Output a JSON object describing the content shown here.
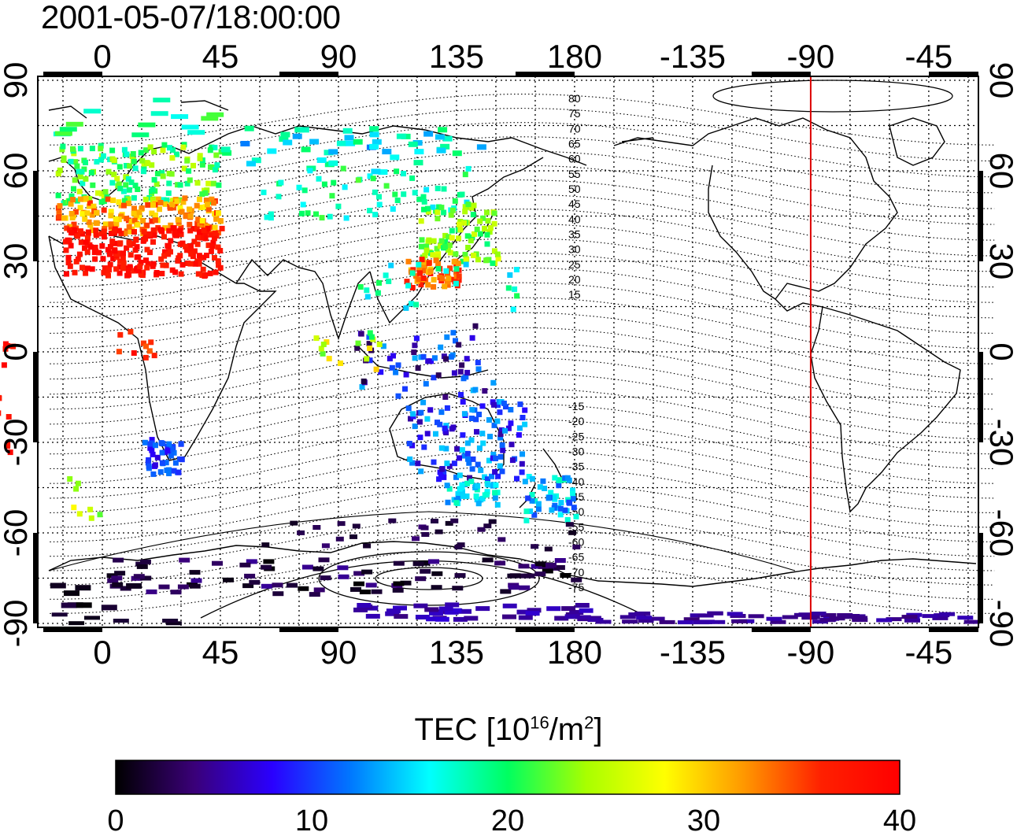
{
  "title": "2001-05-07/18:00:00",
  "map": {
    "lon_ticks": [
      "0",
      "45",
      "90",
      "135",
      "180",
      "-135",
      "-90",
      "-45"
    ],
    "lat_ticks": [
      "90",
      "60",
      "30",
      "0",
      "-30",
      "-60",
      "-90"
    ],
    "magnetic_lat_labels": [
      "80",
      "75",
      "70",
      "65",
      "60",
      "55",
      "50",
      "45",
      "40",
      "35",
      "30",
      "25",
      "20",
      "15",
      "-15",
      "-20",
      "-25",
      "-30",
      "-35",
      "-40",
      "-45",
      "-50",
      "-55",
      "-60",
      "-65",
      "-70",
      "-75"
    ],
    "marker_longitude": -90,
    "marker_color": "#dd0000"
  },
  "colorbar": {
    "label_text": "TEC  [10",
    "label_sup1": "16",
    "label_mid": "/m",
    "label_sup2": "2",
    "label_end": "]",
    "ticks": [
      "0",
      "10",
      "20",
      "30",
      "40"
    ],
    "min": 0,
    "max": 40,
    "colors": [
      "#000000",
      "#3a0078",
      "#2a00ff",
      "#0078ff",
      "#00ffff",
      "#00ff60",
      "#a8ff00",
      "#ffff00",
      "#ff9900",
      "#ff2000",
      "#ff0000"
    ]
  }
}
